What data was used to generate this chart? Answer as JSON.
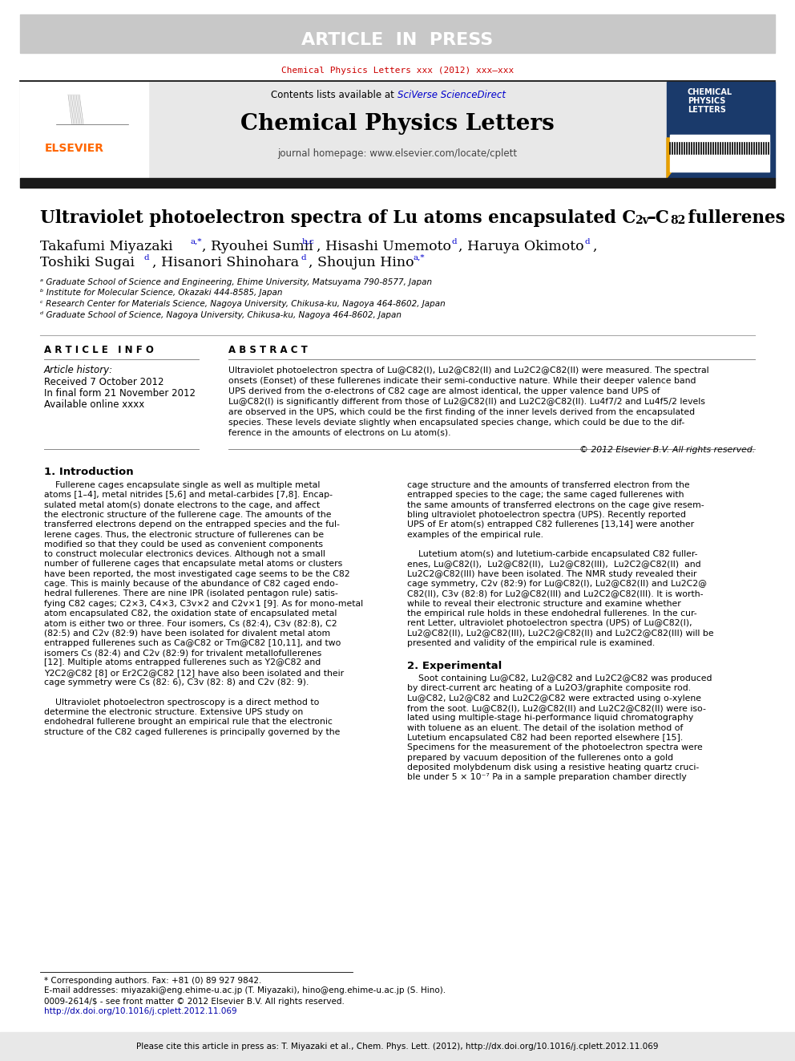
{
  "title_bar_text": "ARTICLE  IN  PRESS",
  "title_bar_color": "#c8c8c8",
  "journal_ref": "Chemical Physics Letters xxx (2012) xxx–xxx",
  "journal_ref_color": "#cc0000",
  "header_bg_color": "#e8e8e8",
  "journal_name": "Chemical Physics Letters",
  "journal_homepage": "journal homepage: www.elsevier.com/locate/cplett",
  "dark_bar_color": "#1a1a1a",
  "article_info_header": "A R T I C L E   I N F O",
  "abstract_header": "A B S T R A C T",
  "article_history_label": "Article history:",
  "received": "Received 7 October 2012",
  "final_form": "In final form 21 November 2012",
  "available": "Available online xxxx",
  "copyright": "© 2012 Elsevier B.V. All rights reserved.",
  "section1_header": "1. Introduction",
  "section2_header": "2. Experimental",
  "affil_a": "ᵃ Graduate School of Science and Engineering, Ehime University, Matsuyama 790-8577, Japan",
  "affil_b": "ᵇ Institute for Molecular Science, Okazaki 444-8585, Japan",
  "affil_c": "ᶜ Research Center for Materials Science, Nagoya University, Chikusa-ku, Nagoya 464-8602, Japan",
  "affil_d": "ᵈ Graduate School of Science, Nagoya University, Chikusa-ku, Nagoya 464-8602, Japan",
  "footnote_star": "* Corresponding authors. Fax: +81 (0) 89 927 9842.",
  "footnote_email": "E-mail addresses: miyazaki@eng.ehime-u.ac.jp (T. Miyazaki), hino@eng.ehime-u.ac.jp (S. Hino).",
  "issn": "0009-2614/$ - see front matter © 2012 Elsevier B.V. All rights reserved.",
  "doi": "http://dx.doi.org/10.1016/j.cplett.2012.11.069",
  "footer_text": "Please cite this article in press as: T. Miyazaki et al., Chem. Phys. Lett. (2012), http://dx.doi.org/10.1016/j.cplett.2012.11.069",
  "footer_bg": "#e8e8e8",
  "abstract_lines": [
    "Ultraviolet photoelectron spectra of Lu@C82(I), Lu2@C82(II) and Lu2C2@C82(II) were measured. The spectral",
    "onsets (Eonset) of these fullerenes indicate their semi-conductive nature. While their deeper valence band",
    "UPS derived from the σ-electrons of C82 cage are almost identical, the upper valence band UPS of",
    "Lu@C82(I) is significantly different from those of Lu2@C82(II) and Lu2C2@C82(II). Lu4f7/2 and Lu4f5/2 levels",
    "are observed in the UPS, which could be the first finding of the inner levels derived from the encapsulated",
    "species. These levels deviate slightly when encapsulated species change, which could be due to the dif-",
    "ference in the amounts of electrons on Lu atom(s)."
  ],
  "col1_text": [
    "    Fullerene cages encapsulate single as well as multiple metal",
    "atoms [1–4], metal nitrides [5,6] and metal-carbides [7,8]. Encap-",
    "sulated metal atom(s) donate electrons to the cage, and affect",
    "the electronic structure of the fullerene cage. The amounts of the",
    "transferred electrons depend on the entrapped species and the ful-",
    "lerene cages. Thus, the electronic structure of fullerenes can be",
    "modified so that they could be used as convenient components",
    "to construct molecular electronics devices. Although not a small",
    "number of fullerene cages that encapsulate metal atoms or clusters",
    "have been reported, the most investigated cage seems to be the C82",
    "cage. This is mainly because of the abundance of C82 caged endo-",
    "hedral fullerenes. There are nine IPR (isolated pentagon rule) satis-",
    "fying C82 cages; C2×3, C4×3, C3v×2 and C2v×1 [9]. As for mono-metal",
    "atom encapsulated C82, the oxidation state of encapsulated metal",
    "atom is either two or three. Four isomers, Cs (82:4), C3v (82:8), C2",
    "(82:5) and C2v (82:9) have been isolated for divalent metal atom",
    "entrapped fullerenes such as Ca@C82 or Tm@C82 [10,11], and two",
    "isomers Cs (82:4) and C2v (82:9) for trivalent metallofullerenes",
    "[12]. Multiple atoms entrapped fullerenes such as Y2@C82 and",
    "Y2C2@C82 [8] or Er2C2@C82 [12] have also been isolated and their",
    "cage symmetry were Cs (82: 6), C3v (82: 8) and C2v (82: 9).",
    "",
    "    Ultraviolet photoelectron spectroscopy is a direct method to",
    "determine the electronic structure. Extensive UPS study on",
    "endohedral fullerene brought an empirical rule that the electronic",
    "structure of the C82 caged fullerenes is principally governed by the"
  ],
  "col2_text": [
    "cage structure and the amounts of transferred electron from the",
    "entrapped species to the cage; the same caged fullerenes with",
    "the same amounts of transferred electrons on the cage give resem-",
    "bling ultraviolet photoelectron spectra (UPS). Recently reported",
    "UPS of Er atom(s) entrapped C82 fullerenes [13,14] were another",
    "examples of the empirical rule.",
    "",
    "    Lutetium atom(s) and lutetium-carbide encapsulated C82 fuller-",
    "enes, Lu@C82(I),  Lu2@C82(II),  Lu2@C82(III),  Lu2C2@C82(II)  and",
    "Lu2C2@C82(III) have been isolated. The NMR study revealed their",
    "cage symmetry, C2v (82:9) for Lu@C82(I), Lu2@C82(II) and Lu2C2@",
    "C82(II), C3v (82:8) for Lu2@C82(III) and Lu2C2@C82(III). It is worth-",
    "while to reveal their electronic structure and examine whether",
    "the empirical rule holds in these endohedral fullerenes. In the cur-",
    "rent Letter, ultraviolet photoelectron spectra (UPS) of Lu@C82(I),",
    "Lu2@C82(II), Lu2@C82(III), Lu2C2@C82(II) and Lu2C2@C82(III) will be",
    "presented and validity of the empirical rule is examined."
  ],
  "exp_text": [
    "    Soot containing Lu@C82, Lu2@C82 and Lu2C2@C82 was produced",
    "by direct-current arc heating of a Lu2O3/graphite composite rod.",
    "Lu@C82, Lu2@C82 and Lu2C2@C82 were extracted using o-xylene",
    "from the soot. Lu@C82(I), Lu2@C82(II) and Lu2C2@C82(II) were iso-",
    "lated using multiple-stage hi-performance liquid chromatography",
    "with toluene as an eluent. The detail of the isolation method of",
    "Lutetium encapsulated C82 had been reported elsewhere [15].",
    "Specimens for the measurement of the photoelectron spectra were",
    "prepared by vacuum deposition of the fullerenes onto a gold",
    "deposited molybdenum disk using a resistive heating quartz cruci-",
    "ble under 5 × 10⁻⁷ Pa in a sample preparation chamber directly"
  ]
}
